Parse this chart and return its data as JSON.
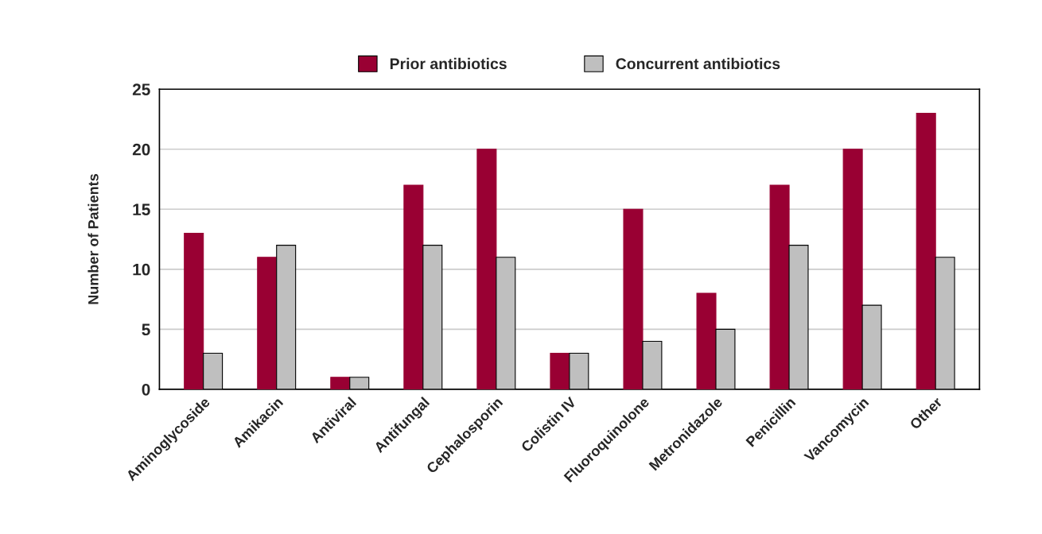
{
  "chart_data": {
    "type": "bar",
    "ylabel": "Number of Patients",
    "categories": [
      "Aminoglycoside",
      "Amikacin",
      "Antiviral",
      "Antifungal",
      "Cephalosporin",
      "Colistin IV",
      "Fluoroquinolone",
      "Metronidazole",
      "Penicillin",
      "Vancomycin",
      "Other"
    ],
    "series": [
      {
        "name": "Prior antibiotics",
        "color": "#990033",
        "values": [
          13,
          11,
          1,
          17,
          20,
          3,
          15,
          8,
          17,
          20,
          23
        ]
      },
      {
        "name": "Concurrent antibiotics",
        "color": "#bfbfbf",
        "values": [
          3,
          12,
          1,
          12,
          11,
          3,
          4,
          5,
          12,
          7,
          11
        ]
      }
    ],
    "ylim": [
      0,
      25
    ],
    "yticks": [
      0,
      5,
      10,
      15,
      20,
      25
    ],
    "grid": "y",
    "legend": "top"
  }
}
